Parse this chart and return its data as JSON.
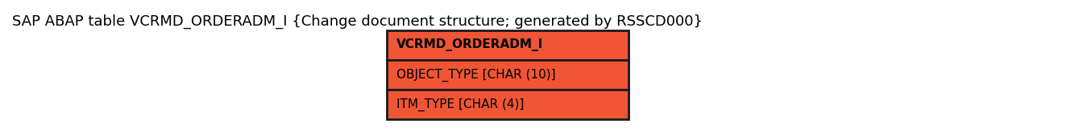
{
  "title": "SAP ABAP table VCRMD_ORDERADM_I {Change document structure; generated by RSSCD000}",
  "title_fontsize": 13,
  "entity_name": "VCRMD_ORDERADM_I",
  "fields": [
    "OBJECT_TYPE [CHAR (10)]",
    "ITM_TYPE [CHAR (4)]"
  ],
  "header_color": "#F05535",
  "field_color": "#F05535",
  "border_color": "#1a1a1a",
  "text_color": "#000000",
  "header_fontsize": 11,
  "field_fontsize": 11,
  "background_color": "#ffffff",
  "fig_width": 13.44,
  "fig_height": 1.65,
  "dpi": 100
}
